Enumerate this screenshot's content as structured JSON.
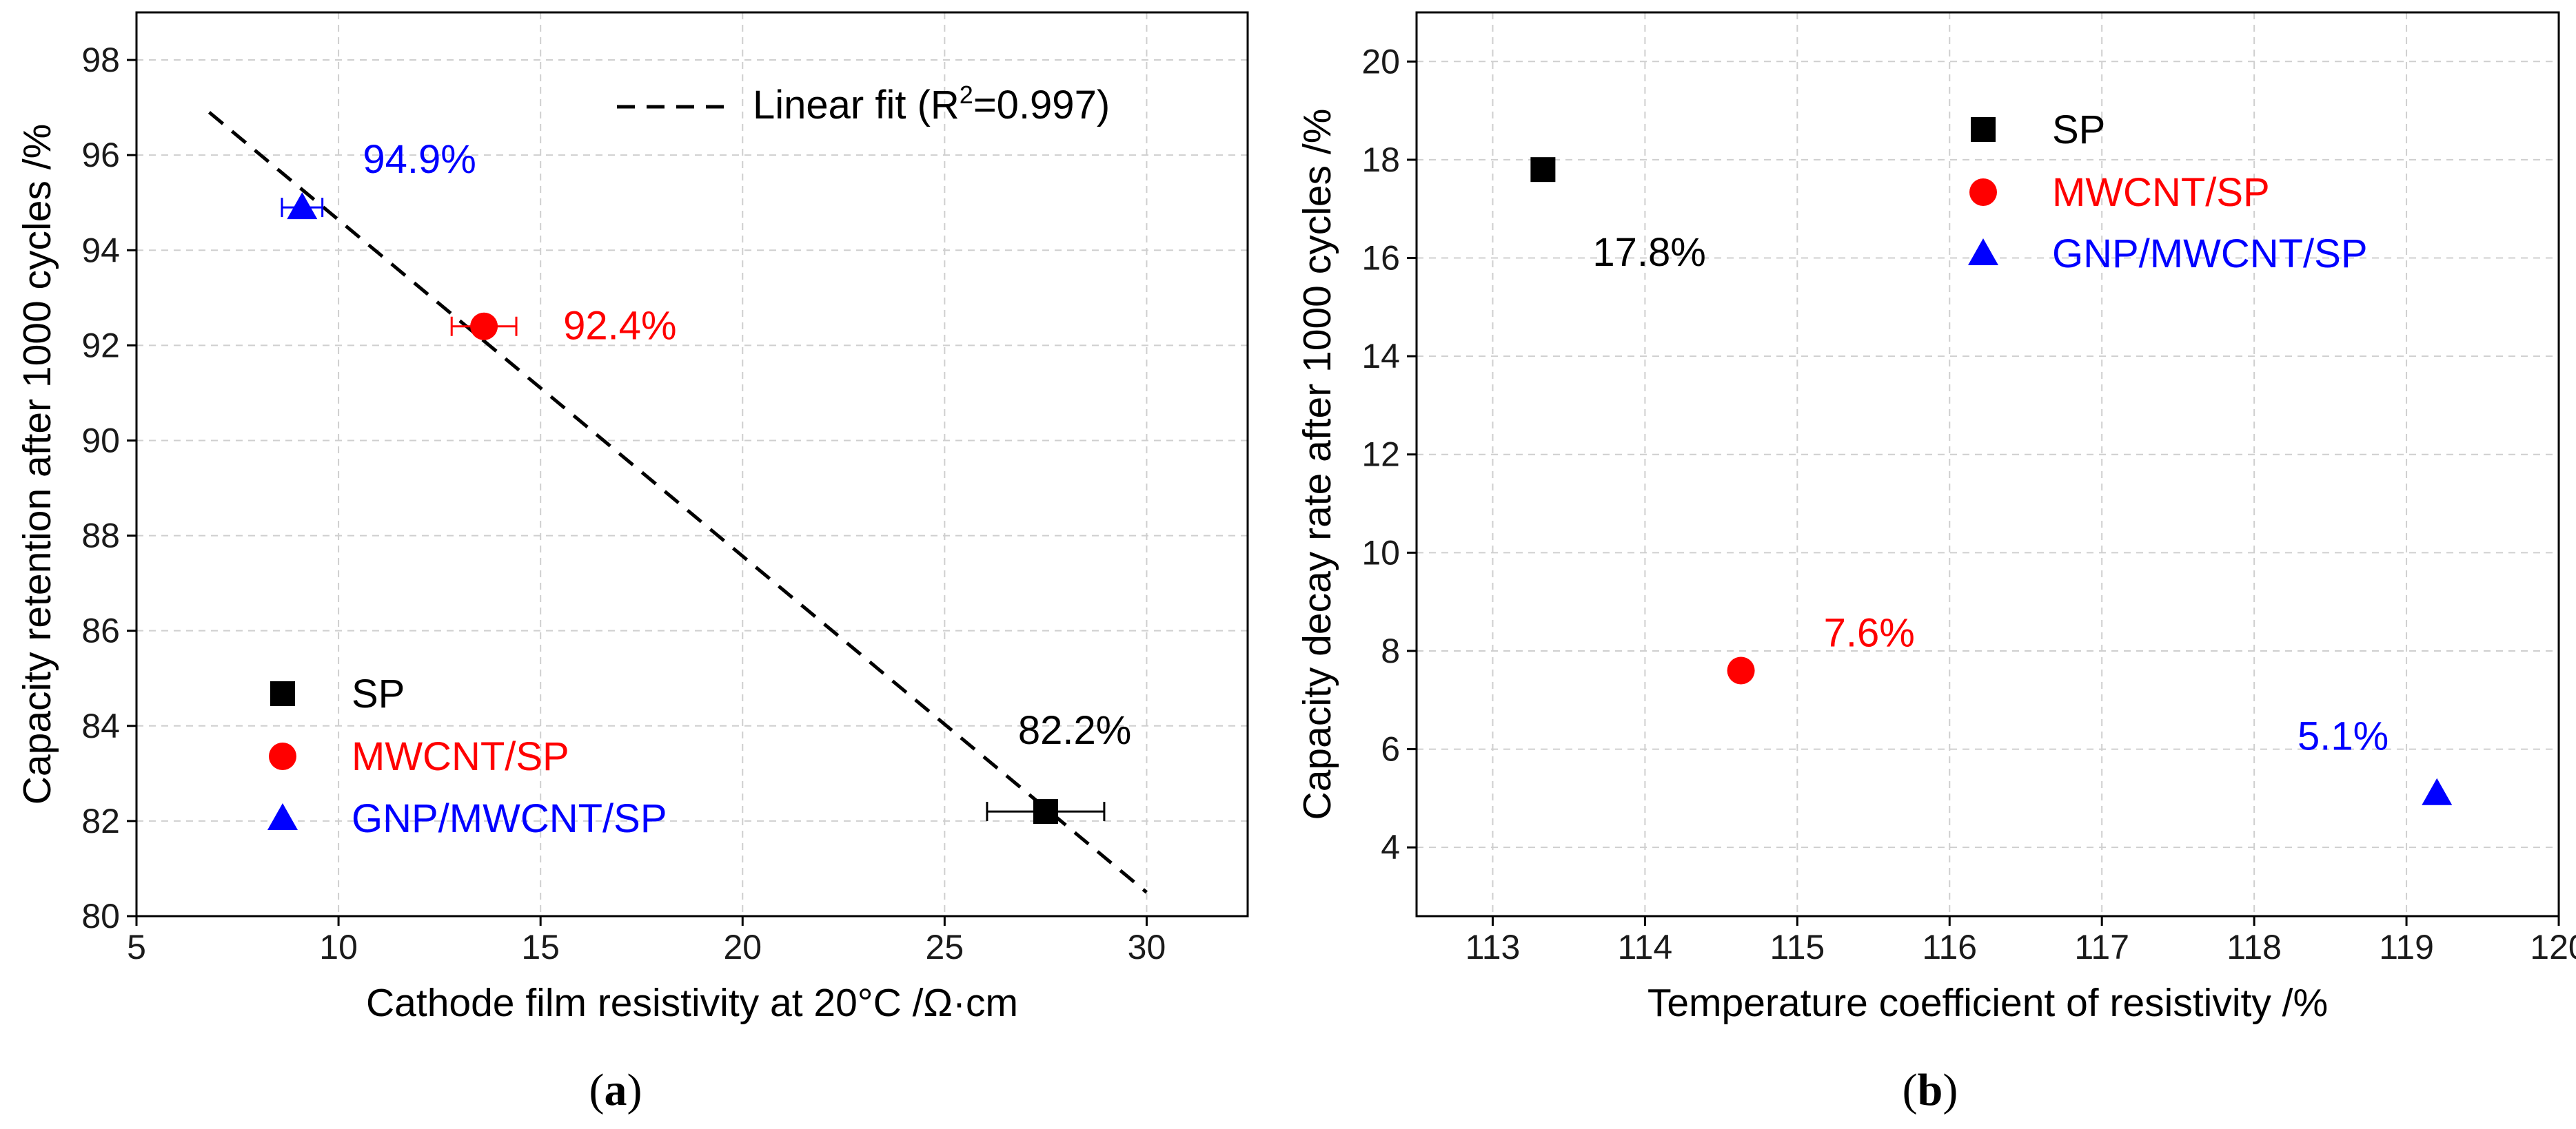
{
  "colors": {
    "SP": "#000000",
    "MWCNT/SP": "#ff0000",
    "GNP/MWCNT/SP": "#0000ff",
    "grid": "#cfcfcf",
    "fit": "#000000"
  },
  "panels": {
    "a": {
      "label_open": "(",
      "label_letter": "a",
      "label_close": ")"
    },
    "b": {
      "label_open": "(",
      "label_letter": "b",
      "label_close": ")"
    }
  },
  "chart_data": [
    {
      "type": "scatter",
      "panel": "a",
      "xlabel": "Cathode film resistivity at 20°C /Ω·cm",
      "ylabel": "Capacity retention after 1000 cycles /%",
      "xlim": [
        5,
        32.5
      ],
      "ylim": [
        80,
        99
      ],
      "xticks": [
        5,
        10,
        15,
        20,
        25,
        30
      ],
      "yticks": [
        80,
        82,
        84,
        86,
        88,
        90,
        92,
        94,
        96,
        98
      ],
      "grid": true,
      "legend_position": "bottom-left",
      "fit": {
        "label_prefix": "Linear fit (R",
        "label_sup": "2",
        "label_suffix": "=0.997)",
        "x": [
          6.8,
          30.0
        ],
        "y": [
          96.9,
          80.5
        ],
        "style": "dashed"
      },
      "series": [
        {
          "name": "SP",
          "marker": "square",
          "x": 27.5,
          "y": 82.2,
          "xerr": 1.45,
          "annotation": "82.2%"
        },
        {
          "name": "MWCNT/SP",
          "marker": "circle",
          "x": 13.6,
          "y": 92.4,
          "xerr": 0.8,
          "annotation": "92.4%"
        },
        {
          "name": "GNP/MWCNT/SP",
          "marker": "triangle",
          "x": 9.1,
          "y": 94.9,
          "xerr": 0.5,
          "annotation": "94.9%"
        }
      ]
    },
    {
      "type": "scatter",
      "panel": "b",
      "xlabel": "Temperature coefficient of resistivity /%",
      "ylabel": "Capacity decay rate after 1000 cycles /%",
      "xlim": [
        112.5,
        120
      ],
      "ylim": [
        2.6,
        21
      ],
      "xticks": [
        113,
        114,
        115,
        116,
        117,
        118,
        119,
        120
      ],
      "yticks": [
        4,
        6,
        8,
        10,
        12,
        14,
        16,
        18,
        20
      ],
      "grid": true,
      "legend_position": "top-right",
      "series": [
        {
          "name": "SP",
          "marker": "square",
          "x": 113.33,
          "y": 17.8,
          "annotation": "17.8%"
        },
        {
          "name": "MWCNT/SP",
          "marker": "circle",
          "x": 114.63,
          "y": 7.6,
          "annotation": "7.6%"
        },
        {
          "name": "GNP/MWCNT/SP",
          "marker": "triangle",
          "x": 119.2,
          "y": 5.1,
          "annotation": "5.1%"
        }
      ]
    }
  ]
}
